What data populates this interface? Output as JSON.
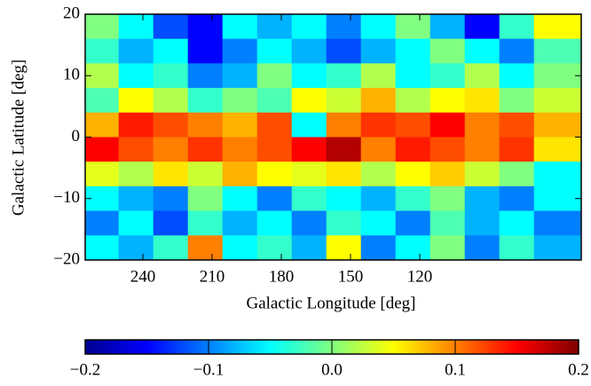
{
  "chart_data": {
    "type": "heatmap",
    "xlabel": "Galactic Longitude [deg]",
    "ylabel": "Galactic Latitude [deg]",
    "colormap": "jet",
    "clim": [
      -0.2,
      0.2
    ],
    "xlim": [
      265,
      50
    ],
    "ylim": [
      -20,
      20
    ],
    "xticks": [
      240,
      210,
      180,
      150,
      120
    ],
    "yticks": [
      {
        "value": -20,
        "label": "−20"
      },
      {
        "value": -10,
        "label": "−10"
      },
      0,
      10,
      20
    ],
    "cticks": [
      {
        "value": -0.2,
        "label": "−0.2"
      },
      {
        "value": -0.1,
        "label": "−0.1"
      },
      {
        "value": 0,
        "label": "0.0"
      },
      0.1,
      0.2
    ],
    "x": [
      258,
      243,
      228,
      213,
      198,
      183,
      168,
      153,
      138,
      123,
      108,
      93,
      78,
      63
    ],
    "y": [
      18,
      14,
      10,
      6,
      2,
      -2,
      -6,
      -10,
      -14,
      -18
    ],
    "z": [
      [
        0.0,
        -0.05,
        -0.12,
        -0.15,
        -0.05,
        -0.08,
        -0.05,
        -0.1,
        -0.05,
        0.0,
        -0.08,
        -0.15,
        -0.03,
        0.05
      ],
      [
        -0.03,
        -0.08,
        -0.05,
        -0.15,
        -0.1,
        -0.05,
        -0.08,
        -0.12,
        -0.08,
        -0.05,
        0.0,
        -0.05,
        -0.1,
        -0.02
      ],
      [
        0.02,
        -0.05,
        -0.03,
        -0.1,
        -0.08,
        0.0,
        -0.05,
        -0.03,
        0.02,
        -0.05,
        -0.03,
        0.02,
        -0.05,
        0.0
      ],
      [
        -0.02,
        0.05,
        0.02,
        -0.03,
        0.0,
        -0.02,
        0.05,
        0.03,
        0.08,
        0.02,
        0.05,
        0.06,
        0.0,
        0.03
      ],
      [
        0.08,
        0.14,
        0.12,
        0.1,
        0.08,
        0.12,
        -0.05,
        0.1,
        0.13,
        0.12,
        0.15,
        0.1,
        0.12,
        0.08
      ],
      [
        0.15,
        0.12,
        0.1,
        0.13,
        0.1,
        0.12,
        0.15,
        0.18,
        0.1,
        0.14,
        0.12,
        0.1,
        0.13,
        0.06
      ],
      [
        0.04,
        0.02,
        0.06,
        0.03,
        0.08,
        0.05,
        0.04,
        0.06,
        0.02,
        0.05,
        0.07,
        0.03,
        0.0,
        -0.05
      ],
      [
        -0.05,
        -0.08,
        -0.1,
        0.0,
        -0.05,
        -0.1,
        -0.03,
        -0.05,
        -0.08,
        -0.03,
        0.0,
        -0.08,
        -0.1,
        -0.05
      ],
      [
        -0.1,
        -0.05,
        -0.12,
        -0.03,
        -0.08,
        -0.05,
        -0.1,
        -0.03,
        -0.05,
        -0.1,
        -0.02,
        -0.08,
        -0.05,
        -0.1
      ],
      [
        -0.05,
        -0.08,
        -0.03,
        0.1,
        -0.05,
        -0.03,
        -0.08,
        0.05,
        -0.1,
        -0.05,
        0.0,
        -0.1,
        -0.03,
        -0.08
      ]
    ]
  }
}
